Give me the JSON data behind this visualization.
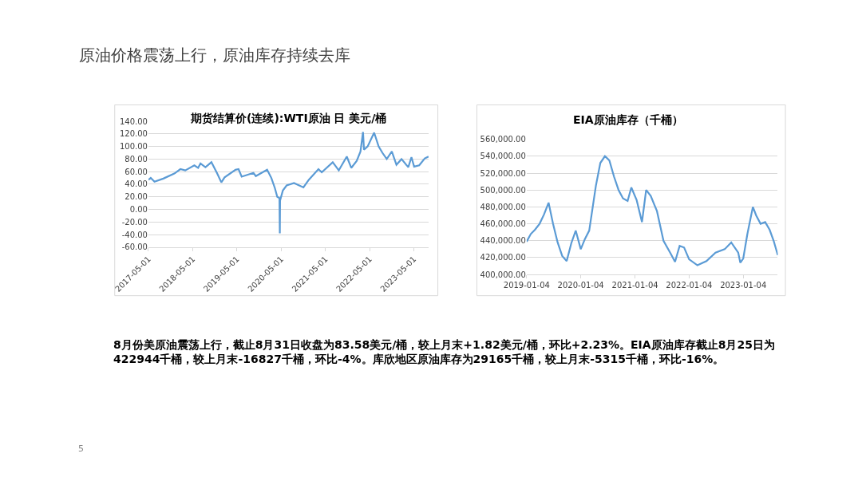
{
  "chart_data": [
    {
      "type": "line",
      "title": "期货结算价(连续):WTI原油 日 美元/桶",
      "grid": "y",
      "xlim": [
        "2017-05-01",
        "2023-09-01"
      ],
      "xticks": [
        "2017-05-01",
        "2018-05-01",
        "2019-05-01",
        "2020-05-01",
        "2021-05-01",
        "2022-05-01",
        "2023-05-01"
      ],
      "ylim": [
        -60,
        140
      ],
      "yticks": [
        {
          "value": -60,
          "label": "-60.00"
        },
        {
          "value": -40,
          "label": "-40.00"
        },
        {
          "value": -20,
          "label": "-20.00"
        },
        {
          "value": 0,
          "label": "0.00"
        },
        {
          "value": 20,
          "label": "20.00"
        },
        {
          "value": 40,
          "label": "40.00"
        },
        {
          "value": 60,
          "label": "60.00"
        },
        {
          "value": 80,
          "label": "80.00"
        },
        {
          "value": 100,
          "label": "100.00"
        },
        {
          "value": 120,
          "label": "120.00"
        },
        {
          "value": 140,
          "label": "140.00"
        }
      ],
      "series": [
        {
          "color": "#5b9bd5",
          "x": [
            "2017-05-01",
            "2017-05-20",
            "2017-06-20",
            "2017-09-01",
            "2017-12-01",
            "2018-01-20",
            "2018-03-01",
            "2018-05-15",
            "2018-06-15",
            "2018-07-05",
            "2018-08-15",
            "2018-10-03",
            "2018-11-20",
            "2018-12-24",
            "2019-01-20",
            "2019-04-20",
            "2019-05-15",
            "2019-06-10",
            "2019-09-15",
            "2019-10-05",
            "2020-01-06",
            "2020-02-10",
            "2020-03-10",
            "2020-03-30",
            "2020-04-17",
            "2020-04-20",
            "2020-04-22",
            "2020-05-15",
            "2020-06-15",
            "2020-08-15",
            "2020-11-01",
            "2020-12-15",
            "2021-03-05",
            "2021-04-01",
            "2021-07-01",
            "2021-08-20",
            "2021-10-25",
            "2021-12-01",
            "2022-01-15",
            "2022-02-15",
            "2022-03-08",
            "2022-03-16",
            "2022-04-15",
            "2022-06-08",
            "2022-07-15",
            "2022-08-15",
            "2022-09-20",
            "2022-11-01",
            "2022-12-09",
            "2023-01-20",
            "2023-03-17",
            "2023-04-12",
            "2023-05-04",
            "2023-06-15",
            "2023-07-31",
            "2023-08-31"
          ],
          "values": [
            47,
            50,
            44,
            49,
            57,
            64,
            62,
            70,
            66,
            73,
            67,
            75,
            57,
            43,
            51,
            63,
            64,
            52,
            58,
            53,
            63,
            50,
            34,
            20,
            18,
            -38,
            14,
            30,
            38,
            42,
            35,
            47,
            64,
            59,
            75,
            62,
            84,
            66,
            77,
            92,
            123,
            95,
            100,
            122,
            100,
            90,
            80,
            92,
            71,
            80,
            67,
            83,
            68,
            70,
            81,
            84
          ]
        }
      ]
    },
    {
      "type": "line",
      "title": "EIA原油库存（千桶）",
      "grid": "y",
      "xlim": [
        "2019-01-04",
        "2023-08-25"
      ],
      "xticks": [
        "2019-01-04",
        "2020-01-04",
        "2021-01-04",
        "2022-01-04",
        "2023-01-04"
      ],
      "ylim": [
        400000,
        560000
      ],
      "yticks": [
        {
          "value": 400000,
          "label": "400,000.00"
        },
        {
          "value": 420000,
          "label": "420,000.00"
        },
        {
          "value": 440000,
          "label": "440,000.00"
        },
        {
          "value": 460000,
          "label": "460,000.00"
        },
        {
          "value": 480000,
          "label": "480,000.00"
        },
        {
          "value": 500000,
          "label": "500,000.00"
        },
        {
          "value": 520000,
          "label": "520,000.00"
        },
        {
          "value": 540000,
          "label": "540,000.00"
        },
        {
          "value": 560000,
          "label": "560,000.00"
        }
      ],
      "series": [
        {
          "color": "#5b9bd5",
          "x": [
            "2019-01-04",
            "2019-02-01",
            "2019-03-01",
            "2019-04-01",
            "2019-05-01",
            "2019-06-01",
            "2019-07-01",
            "2019-08-01",
            "2019-09-01",
            "2019-10-01",
            "2019-11-01",
            "2019-12-01",
            "2020-01-04",
            "2020-02-01",
            "2020-03-01",
            "2020-04-15",
            "2020-05-15",
            "2020-06-15",
            "2020-07-15",
            "2020-08-15",
            "2020-09-15",
            "2020-10-15",
            "2020-11-15",
            "2020-12-10",
            "2021-01-15",
            "2021-02-20",
            "2021-03-20",
            "2021-04-20",
            "2021-06-01",
            "2021-07-15",
            "2021-09-01",
            "2021-10-01",
            "2021-11-01",
            "2021-12-01",
            "2022-01-04",
            "2022-03-01",
            "2022-05-01",
            "2022-07-01",
            "2022-09-01",
            "2022-10-15",
            "2022-12-01",
            "2022-12-15",
            "2023-01-04",
            "2023-02-01",
            "2023-03-10",
            "2023-04-01",
            "2023-05-01",
            "2023-06-01",
            "2023-07-01",
            "2023-07-28",
            "2023-08-25"
          ],
          "values": [
            439000,
            448000,
            453000,
            460000,
            471000,
            485000,
            460000,
            438000,
            422000,
            416000,
            437000,
            452000,
            430000,
            442000,
            452000,
            505000,
            532000,
            540000,
            535000,
            516000,
            500000,
            490000,
            487000,
            503000,
            488000,
            462000,
            500000,
            493000,
            475000,
            440000,
            425000,
            415000,
            434000,
            432000,
            418000,
            411000,
            416000,
            426000,
            430000,
            438000,
            426000,
            414000,
            419000,
            448000,
            480000,
            470000,
            460000,
            462000,
            453000,
            440000,
            423000
          ]
        }
      ]
    },
    {
      "type": "other",
      "title": "原油价格震荡上行，原油库存持续去库",
      "annotations": [
        "8月份美原油震荡上行，截止8月31日收盘为83.58美元/桶，较上月末+1.82美元/桶，环比+2.23%。EIA原油库存截止8月25日为422944千桶，较上月末-16827千桶，环比-4%。库欣地区原油库存为29165千桶，较上月末-5315千桶，环比-16%。",
        "5"
      ]
    }
  ]
}
